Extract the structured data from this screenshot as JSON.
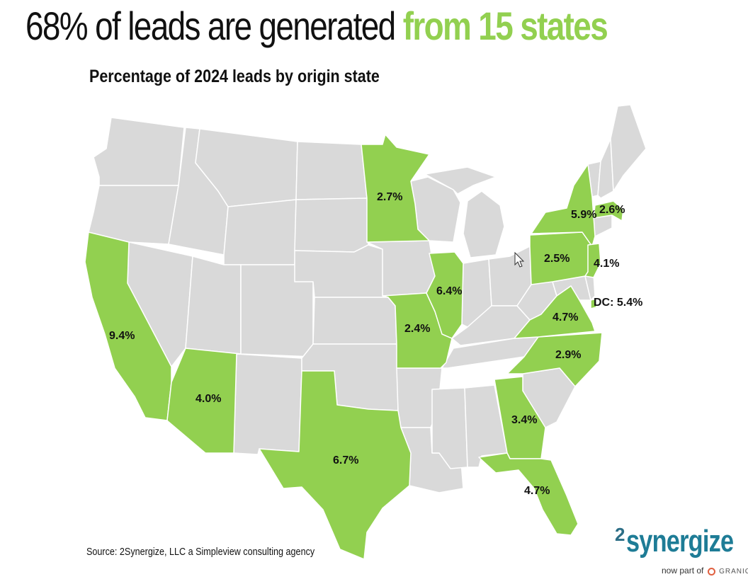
{
  "header": {
    "title_main": "68% of leads are generated",
    "title_accent": "from 15 states",
    "subtitle": "Percentage of 2024 leads by origin state"
  },
  "colors": {
    "highlight": "#92D050",
    "base_state": "#D9D9D9",
    "border": "#FFFFFF"
  },
  "map": {
    "highlighted_states": [
      {
        "state": "California",
        "value": "9.4%"
      },
      {
        "state": "Arizona",
        "value": "4.0%"
      },
      {
        "state": "Texas",
        "value": "6.7%"
      },
      {
        "state": "Minnesota",
        "value": "2.7%"
      },
      {
        "state": "Missouri",
        "value": "2.4%"
      },
      {
        "state": "Illinois",
        "value": "6.4%"
      },
      {
        "state": "Georgia",
        "value": "3.4%"
      },
      {
        "state": "Florida",
        "value": "4.7%"
      },
      {
        "state": "North Carolina",
        "value": "2.9%"
      },
      {
        "state": "Virginia",
        "value": "4.7%"
      },
      {
        "state": "Pennsylvania",
        "value": "2.5%"
      },
      {
        "state": "New York",
        "value": "5.9%"
      },
      {
        "state": "Massachusetts",
        "value": "2.6%"
      },
      {
        "state": "New Jersey",
        "value": "4.1%"
      },
      {
        "state": "DC",
        "value": "DC: 5.4%"
      }
    ]
  },
  "footer": {
    "source": "Source: 2Synergize, LLC a Simpleview consulting agency",
    "logo_num": "2",
    "logo_word": "synergize",
    "logo_tag": "now part of",
    "logo_partner": "GRANICUS"
  }
}
